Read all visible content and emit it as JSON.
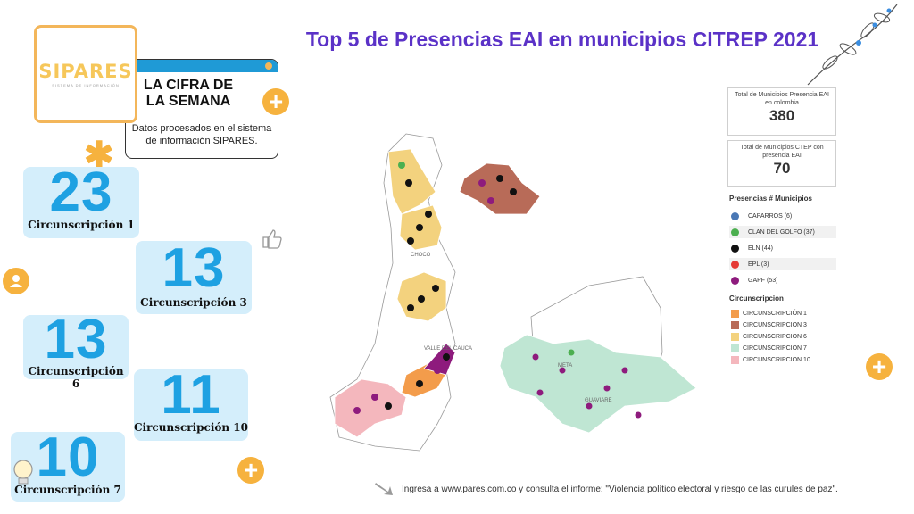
{
  "header": {
    "logo_text": "SIPARES",
    "logo_subtitle": "SISTEMA DE INFORMACIÓN",
    "cifra_title": "LA CIFRA DE LA SEMANA",
    "cifra_description": "Datos procesados en el sistema de información SIPARES."
  },
  "stats": [
    {
      "value": "23",
      "label": "Circunscripción 1"
    },
    {
      "value": "13",
      "label": "Circunscripción 3"
    },
    {
      "value": "13",
      "label": "Circunscripción 6"
    },
    {
      "value": "11",
      "label": "Circunscripción 10"
    },
    {
      "value": "10",
      "label": "Circunscripción 7"
    }
  ],
  "title": "Top 5 de Presencias EAI en municipios CITREP 2021",
  "summary": [
    {
      "caption": "Total de Municipios Presencia EAI en colombia",
      "value": "380"
    },
    {
      "caption": "Total de Municipios CTEP con presencia EAI",
      "value": "70"
    }
  ],
  "legend_presencias": {
    "title": "Presencias # Municipios",
    "items": [
      {
        "label": "CAPARROS (6)",
        "color": "#4a78b5"
      },
      {
        "label": "CLAN DEL GOLFO (37)",
        "color": "#4caf50"
      },
      {
        "label": "ELN (44)",
        "color": "#111111"
      },
      {
        "label": "EPL (3)",
        "color": "#e53935"
      },
      {
        "label": "GAPF (53)",
        "color": "#8e1b7d"
      }
    ]
  },
  "legend_circunscripcion": {
    "title": "Circunscripcion",
    "items": [
      {
        "label": "CIRCUNSCRIPCIÓN 1",
        "color": "#f39c4b"
      },
      {
        "label": "CIRCUNSCRIPCION 3",
        "color": "#b86b58"
      },
      {
        "label": "CIRCUNSCRIPCION 6",
        "color": "#f3d27e"
      },
      {
        "label": "CIRCUNSCRIPCION 7",
        "color": "#bfe6d3"
      },
      {
        "label": "CIRCUNSCRIPCION 10",
        "color": "#f4b7bd"
      }
    ]
  },
  "map_labels": {
    "choco": "CHOCO",
    "valle": "VALLE DEL CAUCA",
    "meta": "META",
    "guaviare": "GUAVIARE"
  },
  "footer": "Ingresa a www.pares.com.co y consulta el informe: \"Violencia político electoral y riesgo de las curules de paz\"."
}
